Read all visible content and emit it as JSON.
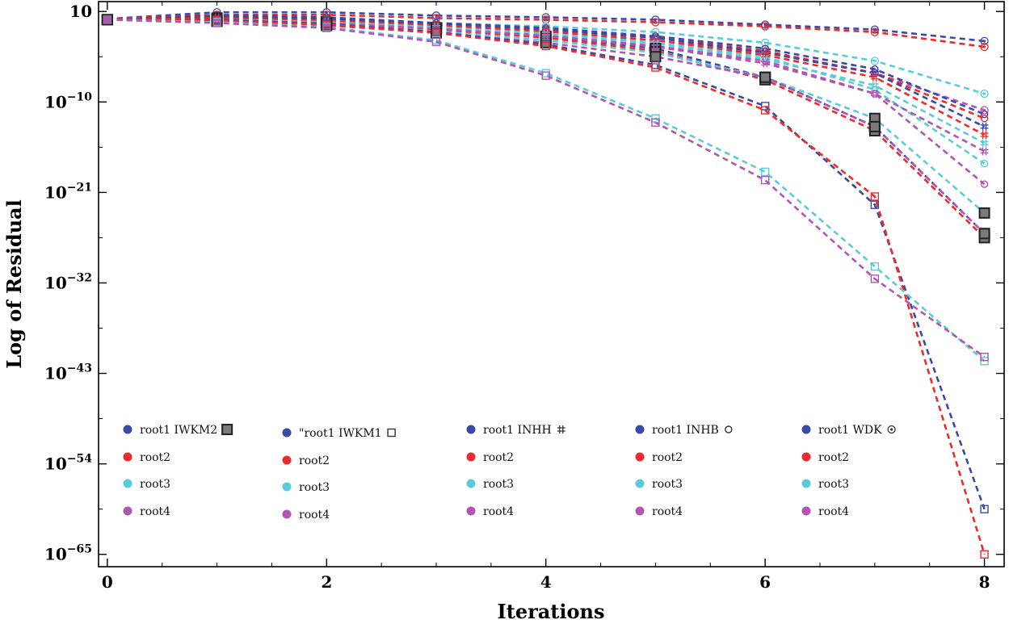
{
  "chart_data": {
    "type": "line",
    "xlabel": "Iterations",
    "ylabel": "Log of Residual",
    "x_ticks": [
      "0",
      "2",
      "4",
      "6",
      "8"
    ],
    "y_ticks": [
      {
        "exp": 1,
        "base": "10",
        "sup": ""
      },
      {
        "exp": -10,
        "base": "10",
        "sup": "−10"
      },
      {
        "exp": -21,
        "base": "10",
        "sup": "−21"
      },
      {
        "exp": -32,
        "base": "10",
        "sup": "−32"
      },
      {
        "exp": -43,
        "base": "10",
        "sup": "−43"
      },
      {
        "exp": -54,
        "base": "10",
        "sup": "−54"
      },
      {
        "exp": -65,
        "base": "10",
        "sup": "−65"
      }
    ],
    "xlim": [
      -0.08,
      8.18
    ],
    "ylim_log10": [
      -66.5,
      2.2
    ],
    "colors": {
      "root1": "#3949a8",
      "root2": "#ec2b2b",
      "root3": "#5ccbd9",
      "root4": "#b155b1",
      "gray": "#555555"
    },
    "legend_groups": [
      {
        "method": "IWKM2",
        "marker": "filled-square",
        "labels": [
          "root1 IWKM2",
          "root2",
          "root3",
          "root4"
        ]
      },
      {
        "method": "IWKM1",
        "marker": "open-square",
        "labels": [
          "\"root1 IWKM1",
          "root2",
          "root3",
          "root4"
        ]
      },
      {
        "method": "INHH",
        "marker": "hash",
        "labels": [
          "root1 INHH",
          "root2",
          "root3",
          "root4"
        ]
      },
      {
        "method": "INHB",
        "marker": "circle-open",
        "labels": [
          "root1 INHB",
          "root2",
          "root3",
          "root4"
        ]
      },
      {
        "method": "WDK",
        "marker": "at",
        "labels": [
          "root1 WDK",
          "root2",
          "root3",
          "root4"
        ]
      }
    ],
    "series": [
      {
        "name": "root1 WDK",
        "method": "WDK",
        "root": "root1",
        "x": [
          0,
          1,
          2,
          3,
          4,
          5,
          6,
          7,
          8
        ],
        "log10_y": [
          0.1,
          0.9,
          0.9,
          0.5,
          0.3,
          0.0,
          -0.6,
          -1.2,
          -2.6
        ]
      },
      {
        "name": "root2 WDK",
        "method": "WDK",
        "root": "root2",
        "x": [
          0,
          1,
          2,
          3,
          4,
          5,
          6,
          7,
          8
        ],
        "log10_y": [
          0.1,
          0.6,
          0.6,
          0.2,
          0.0,
          -0.3,
          -0.8,
          -1.5,
          -3.3
        ]
      },
      {
        "name": "root3 WDK",
        "method": "WDK",
        "root": "root3",
        "x": [
          0,
          1,
          2,
          3,
          4,
          5,
          6,
          7,
          8
        ],
        "log10_y": [
          0.0,
          0.3,
          0.2,
          -0.4,
          -0.8,
          -1.5,
          -2.8,
          -5.0,
          -9.0
        ]
      },
      {
        "name": "root4 WDK",
        "method": "WDK",
        "root": "root4",
        "x": [
          0,
          1,
          2,
          3,
          4,
          5,
          6,
          7,
          8
        ],
        "log10_y": [
          0.0,
          0.0,
          -0.2,
          -0.8,
          -1.5,
          -2.5,
          -4.0,
          -6.5,
          -11.0
        ]
      },
      {
        "name": "root1 INHB",
        "method": "INHB",
        "root": "root1",
        "x": [
          0,
          1,
          2,
          3,
          4,
          5,
          6,
          7,
          8
        ],
        "log10_y": [
          0.0,
          0.5,
          0.3,
          -0.4,
          -1.0,
          -2.0,
          -3.5,
          -6.0,
          -11.5
        ]
      },
      {
        "name": "root2 INHB",
        "method": "INHB",
        "root": "root2",
        "x": [
          0,
          1,
          2,
          3,
          4,
          5,
          6,
          7,
          8
        ],
        "log10_y": [
          0.0,
          0.3,
          0.1,
          -0.6,
          -1.2,
          -2.2,
          -3.8,
          -6.5,
          -12.0
        ]
      },
      {
        "name": "root3 INHB",
        "method": "INHB",
        "root": "root3",
        "x": [
          0,
          1,
          2,
          3,
          4,
          5,
          6,
          7,
          8
        ],
        "log10_y": [
          0.0,
          0.1,
          -0.1,
          -0.9,
          -1.6,
          -2.8,
          -4.5,
          -8.5,
          -17.5
        ]
      },
      {
        "name": "root4 INHB",
        "method": "INHB",
        "root": "root4",
        "x": [
          0,
          1,
          2,
          3,
          4,
          5,
          6,
          7,
          8
        ],
        "log10_y": [
          0.0,
          -0.1,
          -0.3,
          -1.1,
          -1.9,
          -3.2,
          -5.0,
          -9.0,
          -20.0
        ]
      },
      {
        "name": "root1 IWKM2",
        "method": "IWKM2",
        "root": "root1",
        "x": [
          0,
          1,
          2,
          3,
          4,
          5,
          6,
          7,
          8
        ],
        "log10_y": [
          0.0,
          0.2,
          -0.3,
          -1.0,
          -2.0,
          -3.5,
          -7.0,
          -13.0,
          -26.0
        ]
      },
      {
        "name": "root2 IWKM2",
        "method": "IWKM2",
        "root": "root2",
        "x": [
          0,
          1,
          2,
          3,
          4,
          5,
          6,
          7,
          8
        ],
        "log10_y": [
          0.0,
          0.1,
          -0.4,
          -1.2,
          -2.2,
          -3.8,
          -7.3,
          -13.5,
          -26.5
        ]
      },
      {
        "name": "root3 IWKM2",
        "method": "IWKM2",
        "root": "root3",
        "x": [
          0,
          1,
          2,
          3,
          4,
          5,
          6,
          7,
          8
        ],
        "log10_y": [
          0.0,
          -0.1,
          -0.6,
          -1.4,
          -2.5,
          -4.0,
          -7.0,
          -12.0,
          -23.5
        ]
      },
      {
        "name": "root4 IWKM2",
        "method": "IWKM2",
        "root": "root4",
        "x": [
          0,
          1,
          2,
          3,
          4,
          5,
          6,
          7,
          8
        ],
        "log10_y": [
          0.0,
          -0.2,
          -0.7,
          -1.6,
          -2.8,
          -4.5,
          -7.0,
          -13.0,
          -26.0
        ]
      },
      {
        "name": "root1 INHH",
        "method": "INHH",
        "root": "root1",
        "x": [
          0,
          1,
          2,
          3,
          4,
          5,
          6,
          7,
          8
        ],
        "log10_y": [
          0.0,
          0.3,
          0.1,
          -0.5,
          -1.2,
          -2.2,
          -4.0,
          -6.5,
          -13.0
        ]
      },
      {
        "name": "root2 INHH",
        "method": "INHH",
        "root": "root2",
        "x": [
          0,
          1,
          2,
          3,
          4,
          5,
          6,
          7,
          8
        ],
        "log10_y": [
          0.0,
          0.2,
          -0.1,
          -0.7,
          -1.4,
          -2.5,
          -4.3,
          -7.0,
          -14.0
        ]
      },
      {
        "name": "root3 INHH",
        "method": "INHH",
        "root": "root3",
        "x": [
          0,
          1,
          2,
          3,
          4,
          5,
          6,
          7,
          8
        ],
        "log10_y": [
          0.0,
          0.0,
          -0.3,
          -0.9,
          -1.7,
          -2.9,
          -4.8,
          -8.0,
          -15.0
        ]
      },
      {
        "name": "root4 INHH",
        "method": "INHH",
        "root": "root4",
        "x": [
          0,
          1,
          2,
          3,
          4,
          5,
          6,
          7,
          8
        ],
        "log10_y": [
          0.0,
          -0.1,
          -0.4,
          -1.1,
          -2.0,
          -3.3,
          -5.3,
          -9.0,
          -16.0
        ]
      },
      {
        "name": "root1 IWKM1",
        "method": "IWKM1",
        "root": "root1",
        "x": [
          0,
          1,
          2,
          3,
          4,
          5,
          6,
          7,
          8
        ],
        "log10_y": [
          0.0,
          0.0,
          -0.5,
          -1.5,
          -3.0,
          -5.5,
          -10.5,
          -22.5,
          -59.5
        ]
      },
      {
        "name": "root2 IWKM1",
        "method": "IWKM1",
        "root": "root2",
        "x": [
          0,
          1,
          2,
          3,
          4,
          5,
          6,
          7,
          8
        ],
        "log10_y": [
          0.0,
          -0.1,
          -0.6,
          -1.6,
          -3.2,
          -5.8,
          -11.0,
          -21.5,
          -65.0
        ]
      },
      {
        "name": "root3 IWKM1",
        "method": "IWKM1",
        "root": "root3",
        "x": [
          0,
          1,
          2,
          3,
          4,
          5,
          6,
          7,
          8
        ],
        "log10_y": [
          0.0,
          -0.3,
          -0.9,
          -2.5,
          -6.5,
          -12.0,
          -18.5,
          -30.0,
          -41.5
        ]
      },
      {
        "name": "root4 IWKM1",
        "method": "IWKM1",
        "root": "root4",
        "x": [
          0,
          1,
          2,
          3,
          4,
          5,
          6,
          7,
          8
        ],
        "log10_y": [
          0.0,
          -0.4,
          -1.0,
          -2.7,
          -6.8,
          -12.5,
          -19.5,
          -31.5,
          -41.0
        ]
      }
    ]
  }
}
